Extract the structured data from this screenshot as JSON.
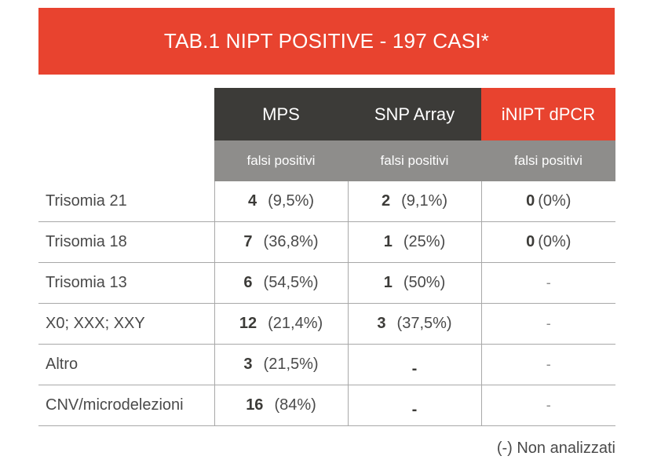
{
  "title": "TAB.1 NIPT POSITIVE - 197 CASI*",
  "columns": [
    {
      "label": "MPS",
      "sublabel": "falsi positivi",
      "color": "#3c3b38"
    },
    {
      "label": "SNP Array",
      "sublabel": "falsi positivi",
      "color": "#3c3b38"
    },
    {
      "label": "iNIPT dPCR",
      "sublabel": "falsi positivi",
      "color": "#e8432f"
    }
  ],
  "rows": [
    {
      "label": "Trisomia 21",
      "mps": {
        "count": "4",
        "pct": "(9,5%)"
      },
      "snp": {
        "count": "2",
        "pct": "(9,1%)"
      },
      "inipt": {
        "count": "0",
        "pct": "(0%)"
      }
    },
    {
      "label": "Trisomia 18",
      "mps": {
        "count": "7",
        "pct": "(36,8%)"
      },
      "snp": {
        "count": "1",
        "pct": "(25%)"
      },
      "inipt": {
        "count": "0",
        "pct": "(0%)"
      }
    },
    {
      "label": "Trisomia 13",
      "mps": {
        "count": "6",
        "pct": "(54,5%)"
      },
      "snp": {
        "count": "1",
        "pct": "(50%)"
      },
      "inipt": {
        "dash": "-"
      }
    },
    {
      "label": "X0; XXX; XXY",
      "mps": {
        "count": "12",
        "pct": "(21,4%)"
      },
      "snp": {
        "count": "3",
        "pct": "(37,5%)"
      },
      "inipt": {
        "dash": "-"
      }
    },
    {
      "label": "Altro",
      "mps": {
        "count": "3",
        "pct": "(21,5%)"
      },
      "snp": {
        "dash": "-"
      },
      "inipt": {
        "dash": "-"
      }
    },
    {
      "label": "CNV/microdelezioni",
      "mps": {
        "count": "16",
        "pct": "(84%)"
      },
      "snp": {
        "dash": "-"
      },
      "inipt": {
        "dash": "-"
      }
    }
  ],
  "footnote": "(-) Non analizzati",
  "colors": {
    "accent": "#e8432f",
    "dark": "#3c3b38",
    "subheader": "#8e8d8b"
  }
}
